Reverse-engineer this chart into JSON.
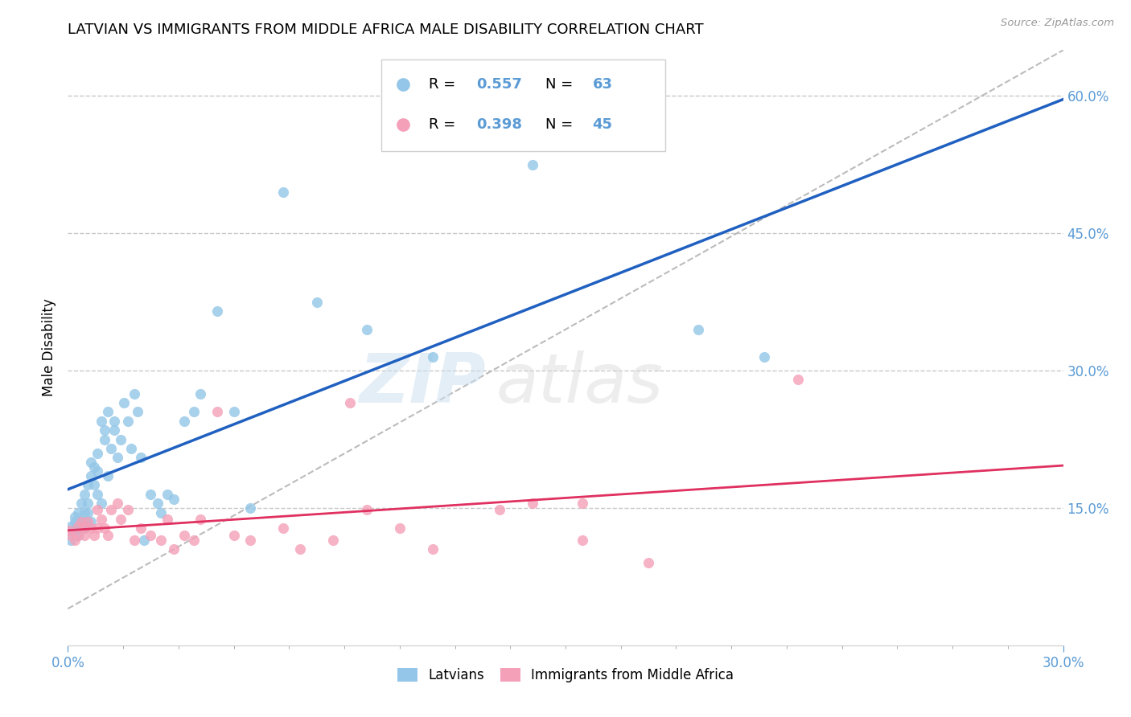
{
  "title": "LATVIAN VS IMMIGRANTS FROM MIDDLE AFRICA MALE DISABILITY CORRELATION CHART",
  "source": "Source: ZipAtlas.com",
  "ylabel_left": "Male Disability",
  "xlim": [
    0.0,
    0.3
  ],
  "ylim": [
    0.0,
    0.65
  ],
  "yticks_right": [
    0.15,
    0.3,
    0.45,
    0.6
  ],
  "grid_color": "#c8c8c8",
  "background_color": "#ffffff",
  "latvian_color": "#93c6e8",
  "immigrant_color": "#f4a0b8",
  "latvian_line_color": "#2060c0",
  "immigrant_line_color": "#e03060",
  "diag_color": "#b0b0b0",
  "legend_latvian_R": "0.557",
  "legend_latvian_N": "63",
  "legend_immigrant_R": "0.398",
  "legend_immigrant_N": "45",
  "legend_latvian_label": "Latvians",
  "legend_immigrant_label": "Immigrants from Middle Africa",
  "title_fontsize": 13,
  "tick_label_color": "#5b9bd5",
  "watermark_text": "ZIPatlas",
  "latvian_x": [
    0.0005,
    0.001,
    0.001,
    0.002,
    0.002,
    0.002,
    0.003,
    0.003,
    0.003,
    0.004,
    0.004,
    0.004,
    0.005,
    0.005,
    0.005,
    0.005,
    0.006,
    0.006,
    0.006,
    0.007,
    0.007,
    0.007,
    0.008,
    0.008,
    0.009,
    0.009,
    0.009,
    0.01,
    0.01,
    0.011,
    0.011,
    0.012,
    0.012,
    0.013,
    0.014,
    0.014,
    0.015,
    0.016,
    0.017,
    0.018,
    0.019,
    0.02,
    0.021,
    0.022,
    0.023,
    0.025,
    0.027,
    0.028,
    0.03,
    0.032,
    0.035,
    0.038,
    0.04,
    0.045,
    0.05,
    0.055,
    0.065,
    0.075,
    0.09,
    0.11,
    0.14,
    0.19,
    0.21
  ],
  "latvian_y": [
    0.125,
    0.13,
    0.115,
    0.135,
    0.125,
    0.14,
    0.13,
    0.145,
    0.12,
    0.135,
    0.155,
    0.128,
    0.145,
    0.165,
    0.135,
    0.128,
    0.175,
    0.155,
    0.145,
    0.185,
    0.2,
    0.135,
    0.195,
    0.175,
    0.21,
    0.165,
    0.19,
    0.155,
    0.245,
    0.225,
    0.235,
    0.185,
    0.255,
    0.215,
    0.235,
    0.245,
    0.205,
    0.225,
    0.265,
    0.245,
    0.215,
    0.275,
    0.255,
    0.205,
    0.115,
    0.165,
    0.155,
    0.145,
    0.165,
    0.16,
    0.245,
    0.255,
    0.275,
    0.365,
    0.255,
    0.15,
    0.495,
    0.375,
    0.345,
    0.315,
    0.525,
    0.345,
    0.315
  ],
  "immigrant_x": [
    0.0005,
    0.001,
    0.002,
    0.003,
    0.003,
    0.004,
    0.005,
    0.005,
    0.006,
    0.007,
    0.008,
    0.009,
    0.009,
    0.01,
    0.011,
    0.012,
    0.013,
    0.015,
    0.016,
    0.018,
    0.02,
    0.022,
    0.025,
    0.028,
    0.03,
    0.032,
    0.035,
    0.038,
    0.04,
    0.045,
    0.05,
    0.055,
    0.065,
    0.07,
    0.08,
    0.085,
    0.09,
    0.1,
    0.11,
    0.13,
    0.14,
    0.155,
    0.175,
    0.22,
    0.155
  ],
  "immigrant_y": [
    0.125,
    0.12,
    0.115,
    0.13,
    0.12,
    0.135,
    0.128,
    0.12,
    0.135,
    0.128,
    0.12,
    0.148,
    0.128,
    0.138,
    0.128,
    0.12,
    0.148,
    0.155,
    0.138,
    0.148,
    0.115,
    0.128,
    0.12,
    0.115,
    0.138,
    0.105,
    0.12,
    0.115,
    0.138,
    0.255,
    0.12,
    0.115,
    0.128,
    0.105,
    0.115,
    0.265,
    0.148,
    0.128,
    0.105,
    0.148,
    0.155,
    0.155,
    0.09,
    0.29,
    0.115
  ]
}
